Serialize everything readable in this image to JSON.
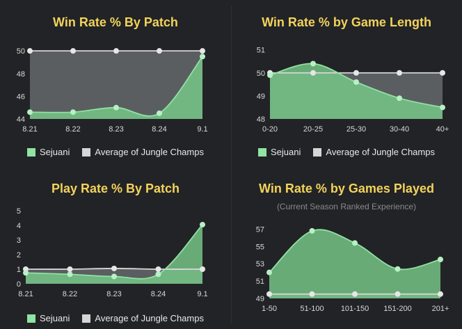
{
  "colors": {
    "background": "#222326",
    "plot_background": "#5b5e61",
    "title": "#f2d35b",
    "sejuani_line": "#8fe3a3",
    "sejuani_fill": "#78c98a",
    "average_line": "#d8d8d8",
    "average_swatch": "#d6d6d6",
    "sejuani_swatch": "#8fe3a3"
  },
  "legend": {
    "series_a": "Sejuani",
    "series_b": "Average of Jungle Champs"
  },
  "chart_data": [
    {
      "type": "area",
      "title": "Win Rate % By Patch",
      "subtitle": "",
      "x": [
        "8.21",
        "8.22",
        "8.23",
        "8.24",
        "9.1"
      ],
      "yticks": [
        "44",
        "46",
        "48",
        "50"
      ],
      "ylim": [
        44,
        50.5
      ],
      "legend_placement": "bottom",
      "series": [
        {
          "name": "Sejuani",
          "values": [
            44.6,
            44.6,
            45.0,
            44.5,
            49.5
          ]
        },
        {
          "name": "Average of Jungle Champs",
          "values": [
            50,
            50,
            50,
            50,
            50
          ]
        }
      ]
    },
    {
      "type": "area",
      "title": "Win Rate % by Game Length",
      "subtitle": "",
      "x": [
        "0-20",
        "20-25",
        "25-30",
        "30-40",
        "40+"
      ],
      "yticks": [
        "48",
        "49",
        "50",
        "51"
      ],
      "ylim": [
        48,
        51.2
      ],
      "legend_placement": "bottom",
      "series": [
        {
          "name": "Sejuani",
          "values": [
            49.9,
            50.4,
            49.6,
            48.9,
            48.5
          ]
        },
        {
          "name": "Average of Jungle Champs",
          "values": [
            50,
            50,
            50,
            50,
            50
          ]
        }
      ]
    },
    {
      "type": "area",
      "title": "Play Rate % By Patch",
      "subtitle": "",
      "x": [
        "8.21",
        "8.22",
        "8.23",
        "8.24",
        "9.1"
      ],
      "yticks": [
        "0",
        "1",
        "2",
        "3",
        "4",
        "5"
      ],
      "ylim": [
        0,
        5
      ],
      "legend_placement": "bottom",
      "series": [
        {
          "name": "Sejuani",
          "values": [
            0.75,
            0.65,
            0.5,
            0.65,
            4.05
          ]
        },
        {
          "name": "Average of Jungle Champs",
          "values": [
            1.0,
            1.0,
            1.05,
            1.0,
            1.0
          ]
        }
      ]
    },
    {
      "type": "area",
      "title": "Win Rate % by Games Played",
      "subtitle": "(Current Season Ranked Experience)",
      "x": [
        "1-50",
        "51-100",
        "101-150",
        "151-200",
        "201+"
      ],
      "yticks": [
        "49",
        "51",
        "53",
        "55",
        "57"
      ],
      "ylim": [
        49,
        58
      ],
      "legend_placement": "none",
      "series": [
        {
          "name": "Sejuani",
          "values": [
            52.0,
            56.8,
            55.4,
            52.4,
            53.5
          ]
        },
        {
          "name": "Average of Jungle Champs",
          "values": [
            49.5,
            49.5,
            49.5,
            49.5,
            49.5
          ]
        }
      ]
    }
  ]
}
